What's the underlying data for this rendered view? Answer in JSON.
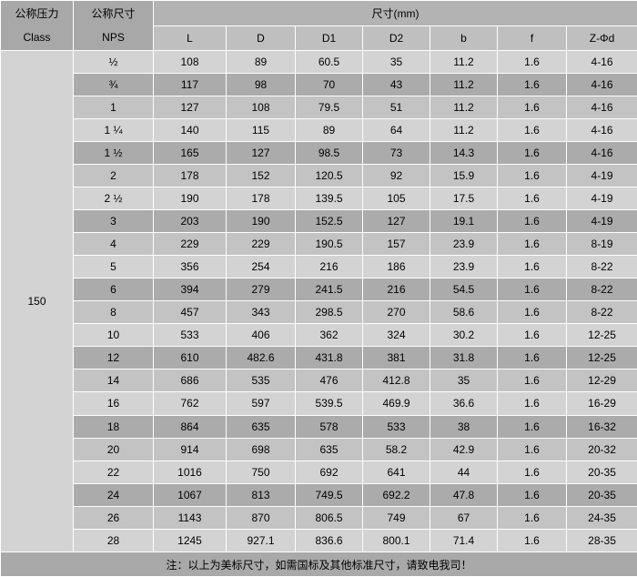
{
  "table": {
    "header": {
      "pressure_col": {
        "line1": "公称压力",
        "line2": "Class"
      },
      "size_col": {
        "line1": "公称尺寸",
        "line2": "NPS"
      },
      "dims_title": "尺寸(mm)",
      "dim_columns": [
        "L",
        "D",
        "D1",
        "D2",
        "b",
        "f",
        "Z-Φd"
      ]
    },
    "footer_note": "注：以上为美标尺寸，如需国标及其他标准尺寸，请致电我司！"
  },
  "chart_data": {
    "type": "table",
    "title": "尺寸(mm)",
    "columns": [
      "公称压力 Class",
      "公称尺寸 NPS",
      "L",
      "D",
      "D1",
      "D2",
      "b",
      "f",
      "Z-Φd"
    ],
    "class_value": "150",
    "rows": [
      [
        "½",
        "108",
        "89",
        "60.5",
        "35",
        "11.2",
        "1.6",
        "4-16"
      ],
      [
        "¾",
        "117",
        "98",
        "70",
        "43",
        "11.2",
        "1.6",
        "4-16"
      ],
      [
        "1",
        "127",
        "108",
        "79.5",
        "51",
        "11.2",
        "1.6",
        "4-16"
      ],
      [
        "1 ¼",
        "140",
        "115",
        "89",
        "64",
        "11.2",
        "1.6",
        "4-16"
      ],
      [
        "1 ½",
        "165",
        "127",
        "98.5",
        "73",
        "14.3",
        "1.6",
        "4-16"
      ],
      [
        "2",
        "178",
        "152",
        "120.5",
        "92",
        "15.9",
        "1.6",
        "4-19"
      ],
      [
        "2 ½",
        "190",
        "178",
        "139.5",
        "105",
        "17.5",
        "1.6",
        "4-19"
      ],
      [
        "3",
        "203",
        "190",
        "152.5",
        "127",
        "19.1",
        "1.6",
        "4-19"
      ],
      [
        "4",
        "229",
        "229",
        "190.5",
        "157",
        "23.9",
        "1.6",
        "8-19"
      ],
      [
        "5",
        "356",
        "254",
        "216",
        "186",
        "23.9",
        "1.6",
        "8-22"
      ],
      [
        "6",
        "394",
        "279",
        "241.5",
        "216",
        "54.5",
        "1.6",
        "8-22"
      ],
      [
        "8",
        "457",
        "343",
        "298.5",
        "270",
        "58.6",
        "1.6",
        "8-22"
      ],
      [
        "10",
        "533",
        "406",
        "362",
        "324",
        "30.2",
        "1.6",
        "12-25"
      ],
      [
        "12",
        "610",
        "482.6",
        "431.8",
        "381",
        "31.8",
        "1.6",
        "12-25"
      ],
      [
        "14",
        "686",
        "535",
        "476",
        "412.8",
        "35",
        "1.6",
        "12-29"
      ],
      [
        "16",
        "762",
        "597",
        "539.5",
        "469.9",
        "36.6",
        "1.6",
        "16-29"
      ],
      [
        "18",
        "864",
        "635",
        "578",
        "533",
        "38",
        "1.6",
        "16-32"
      ],
      [
        "20",
        "914",
        "698",
        "635",
        "58.2",
        "42.9",
        "1.6",
        "20-32"
      ],
      [
        "22",
        "1016",
        "750",
        "692",
        "641",
        "44",
        "1.6",
        "20-35"
      ],
      [
        "24",
        "1067",
        "813",
        "749.5",
        "692.2",
        "47.8",
        "1.6",
        "20-35"
      ],
      [
        "26",
        "1143",
        "870",
        "806.5",
        "749",
        "67",
        "1.6",
        "24-35"
      ],
      [
        "28",
        "1245",
        "927.1",
        "836.6",
        "800.1",
        "71.4",
        "1.6",
        "28-35"
      ]
    ]
  },
  "colors": {
    "grid_line": "#ffffff",
    "header_dark": "#a8a8a8",
    "header_dims": "#b3b3b3",
    "header_sub": "#bfbfbf",
    "row_light": "#d3d3d3",
    "row_mid": "#c3c3c3",
    "row_dark": "#ababab",
    "class_cell": "#cfcfcf",
    "footer": "#a9a9a9",
    "text": "#000000"
  }
}
